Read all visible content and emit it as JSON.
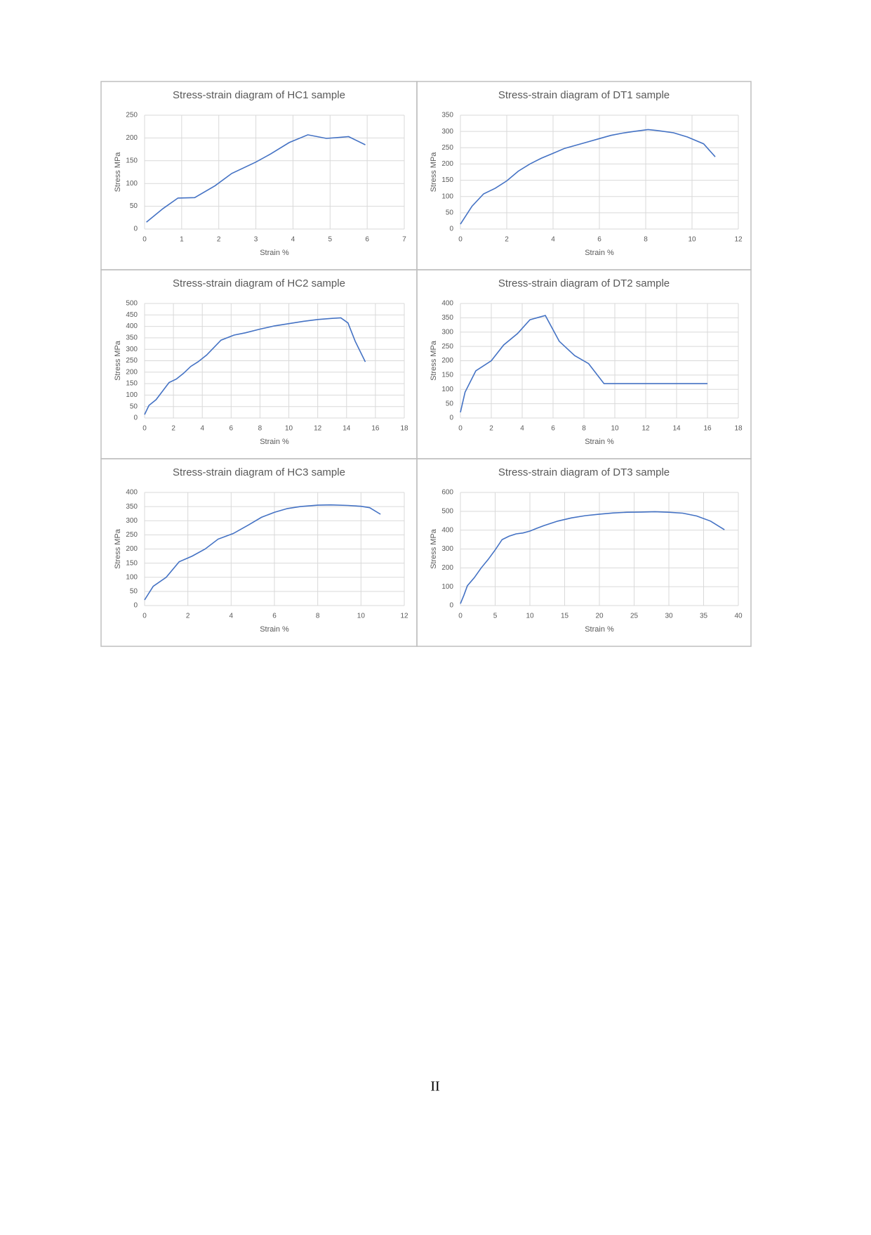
{
  "chart_data": [
    {
      "type": "line",
      "title": "Stress-strain diagram of HC1 sample",
      "x_label": "Strain %",
      "y_label": "Stress MPa",
      "x": [
        0.05,
        0.5,
        0.9,
        1.35,
        1.9,
        2.35,
        3,
        3.4,
        3.9,
        4.4,
        4.9,
        5.2,
        5.5,
        5.95
      ],
      "values": [
        15,
        45,
        68,
        69,
        95,
        122,
        147,
        165,
        190,
        207,
        199,
        201,
        203,
        185
      ],
      "color": "#4472c4",
      "xlim": [
        0,
        7
      ],
      "xticks": [
        0,
        1,
        2,
        3,
        4,
        5,
        6,
        7
      ],
      "ylim": [
        0,
        250
      ],
      "yticks": [
        0,
        50,
        100,
        150,
        200,
        250
      ],
      "grid": true
    },
    {
      "type": "line",
      "title": "Stress-strain diagram of DT1 sample",
      "x_label": "Strain %",
      "y_label": "Stress MPa",
      "x": [
        0,
        0.5,
        1,
        1.5,
        2,
        2.5,
        3,
        3.5,
        4,
        4.5,
        5,
        5.5,
        6,
        6.5,
        7,
        7.5,
        8.1,
        8.5,
        9.2,
        9.8,
        10.5,
        11
      ],
      "values": [
        15,
        70,
        108,
        125,
        148,
        178,
        200,
        218,
        233,
        248,
        258,
        268,
        278,
        288,
        295,
        300,
        306,
        303,
        296,
        283,
        262,
        222
      ],
      "color": "#4472c4",
      "xlim": [
        0,
        12
      ],
      "xticks": [
        0,
        2,
        4,
        6,
        8,
        10,
        12
      ],
      "ylim": [
        0,
        350
      ],
      "yticks": [
        0,
        50,
        100,
        150,
        200,
        250,
        300,
        350
      ],
      "grid": true
    },
    {
      "type": "line",
      "title": "Stress-strain diagram of HC2 sample",
      "x_label": "Strain %",
      "y_label": "Stress MPa",
      "x": [
        0,
        0.3,
        0.8,
        1.7,
        2.2,
        2.7,
        3.2,
        3.7,
        4.3,
        5.3,
        6.2,
        7,
        8,
        9,
        10,
        11,
        12,
        13,
        13.6,
        14.1,
        14.6,
        15.3
      ],
      "values": [
        15,
        55,
        80,
        155,
        170,
        195,
        225,
        245,
        275,
        340,
        362,
        372,
        388,
        402,
        412,
        422,
        430,
        435,
        437,
        415,
        335,
        245
      ],
      "color": "#4472c4",
      "xlim": [
        0,
        18
      ],
      "xticks": [
        0,
        2,
        4,
        6,
        8,
        10,
        12,
        14,
        16,
        18
      ],
      "ylim": [
        0,
        500
      ],
      "yticks": [
        0,
        50,
        100,
        150,
        200,
        250,
        300,
        350,
        400,
        450,
        500
      ],
      "grid": true
    },
    {
      "type": "line",
      "title": "Stress-strain diagram of DT2 sample",
      "x_label": "Strain %",
      "y_label": "Stress MPa",
      "x": [
        0,
        0.3,
        1,
        2,
        2.8,
        3.7,
        4.5,
        5.5,
        6.4,
        7.4,
        8.3,
        9.3,
        16
      ],
      "values": [
        20,
        90,
        165,
        200,
        255,
        295,
        343,
        358,
        268,
        218,
        190,
        120,
        120
      ],
      "color": "#4472c4",
      "xlim": [
        0,
        18
      ],
      "xticks": [
        0,
        2,
        4,
        6,
        8,
        10,
        12,
        14,
        16,
        18
      ],
      "ylim": [
        0,
        400
      ],
      "yticks": [
        0,
        50,
        100,
        150,
        200,
        250,
        300,
        350,
        400
      ],
      "grid": true
    },
    {
      "type": "line",
      "title": "Stress-strain diagram of HC3 sample",
      "x_label": "Strain %",
      "y_label": "Stress MPa",
      "x": [
        0,
        0.4,
        1,
        1.6,
        2.2,
        2.8,
        3.4,
        4.1,
        4.8,
        5.4,
        6,
        6.6,
        7.2,
        8,
        8.6,
        9.4,
        10,
        10.4,
        10.9
      ],
      "values": [
        20,
        68,
        100,
        155,
        175,
        200,
        235,
        255,
        285,
        312,
        330,
        343,
        350,
        355,
        356,
        354,
        351,
        346,
        323
      ],
      "color": "#4472c4",
      "xlim": [
        0,
        12
      ],
      "xticks": [
        0,
        2,
        4,
        6,
        8,
        10,
        12
      ],
      "ylim": [
        0,
        400
      ],
      "yticks": [
        0,
        50,
        100,
        150,
        200,
        250,
        300,
        350,
        400
      ],
      "grid": true
    },
    {
      "type": "line",
      "title": "Stress-strain diagram of DT3 sample",
      "x_label": "Strain %",
      "y_label": "Stress MPa",
      "x": [
        0,
        0.5,
        1,
        2,
        3,
        4,
        5,
        6,
        7,
        8,
        9,
        10,
        11,
        12,
        14,
        16,
        18,
        20,
        22,
        24,
        26,
        28,
        30,
        32,
        34,
        36,
        38
      ],
      "values": [
        10,
        55,
        105,
        148,
        200,
        245,
        295,
        350,
        368,
        380,
        385,
        395,
        410,
        424,
        448,
        465,
        477,
        485,
        491,
        495,
        496,
        498,
        495,
        490,
        475,
        448,
        402
      ],
      "color": "#4472c4",
      "xlim": [
        0,
        40
      ],
      "xticks": [
        0,
        5,
        10,
        15,
        20,
        25,
        30,
        35,
        40
      ],
      "ylim": [
        0,
        600
      ],
      "yticks": [
        0,
        100,
        200,
        300,
        400,
        500,
        600
      ],
      "grid": true
    }
  ],
  "page_number": "II"
}
